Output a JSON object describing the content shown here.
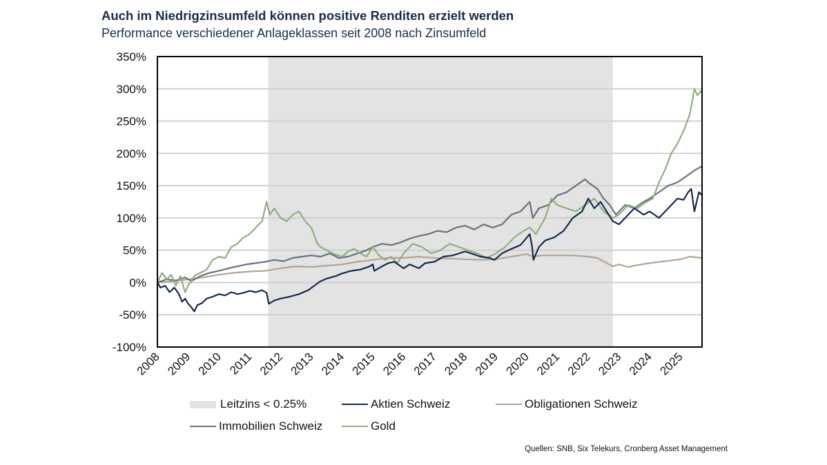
{
  "header": {
    "title": "Auch im Niedrigzinsumfeld können positive Renditen erzielt werden",
    "subtitle": "Performance verschiedener Anlageklassen seit 2008 nach Zinsumfeld"
  },
  "source": "Quellen: SNB, Six Telekurs, Cronberg Asset Management",
  "chart_data": {
    "type": "line",
    "title": "Auch im Niedrigzinsumfeld können positive Renditen erzielt werden",
    "subtitle": "Performance verschiedener Anlageklassen seit 2008 nach Zinsumfeld",
    "xlabel": "",
    "ylabel": "",
    "xlim": [
      2008.0,
      2025.7
    ],
    "ylim": [
      -100,
      350
    ],
    "x_ticks": [
      "2008",
      "2009",
      "2010",
      "2011",
      "2012",
      "2013",
      "2014",
      "2015",
      "2016",
      "2017",
      "2018",
      "2019",
      "2020",
      "2021",
      "2022",
      "2023",
      "2024",
      "2025"
    ],
    "y_ticks": [
      "-100%",
      "-50%",
      "0%",
      "50%",
      "100%",
      "150%",
      "200%",
      "250%",
      "300%",
      "350%"
    ],
    "y_tick_values": [
      -100,
      -50,
      0,
      50,
      100,
      150,
      200,
      250,
      300,
      350
    ],
    "grid": "horizontal",
    "legend_position": "bottom",
    "shaded_region": {
      "label": "Leitzins < 0.25%",
      "start": 2011.6,
      "end": 2022.8,
      "color": "#e3e3e3"
    },
    "series": [
      {
        "name": "Aktien Schweiz",
        "color": "#13294b",
        "x": [
          2008.0,
          2008.1,
          2008.25,
          2008.4,
          2008.55,
          2008.7,
          2008.8,
          2008.9,
          2009.0,
          2009.1,
          2009.2,
          2009.3,
          2009.45,
          2009.6,
          2009.8,
          2010.0,
          2010.2,
          2010.4,
          2010.6,
          2010.8,
          2011.0,
          2011.2,
          2011.4,
          2011.55,
          2011.62,
          2011.8,
          2012.0,
          2012.3,
          2012.6,
          2012.9,
          2013.1,
          2013.3,
          2013.5,
          2013.8,
          2014.0,
          2014.3,
          2014.6,
          2014.9,
          2015.0,
          2015.05,
          2015.3,
          2015.5,
          2015.7,
          2016.0,
          2016.2,
          2016.5,
          2016.7,
          2017.0,
          2017.3,
          2017.6,
          2018.0,
          2018.2,
          2018.5,
          2018.8,
          2018.95,
          2019.2,
          2019.5,
          2019.8,
          2020.1,
          2020.18,
          2020.22,
          2020.4,
          2020.6,
          2020.9,
          2021.2,
          2021.5,
          2021.8,
          2022.0,
          2022.2,
          2022.4,
          2022.6,
          2022.8,
          2023.0,
          2023.2,
          2023.5,
          2023.8,
          2024.0,
          2024.3,
          2024.6,
          2024.9,
          2025.1,
          2025.25,
          2025.35,
          2025.45,
          2025.6,
          2025.7
        ],
        "values": [
          0,
          -8,
          -5,
          -15,
          -8,
          -18,
          -30,
          -25,
          -33,
          -38,
          -45,
          -35,
          -32,
          -25,
          -22,
          -18,
          -20,
          -15,
          -18,
          -16,
          -13,
          -15,
          -12,
          -16,
          -33,
          -28,
          -25,
          -22,
          -18,
          -12,
          -5,
          2,
          6,
          10,
          14,
          18,
          20,
          25,
          28,
          18,
          25,
          30,
          32,
          22,
          28,
          22,
          30,
          32,
          40,
          42,
          48,
          45,
          40,
          38,
          35,
          45,
          52,
          58,
          75,
          55,
          35,
          55,
          65,
          70,
          80,
          100,
          110,
          130,
          115,
          125,
          110,
          95,
          90,
          100,
          115,
          105,
          110,
          100,
          115,
          130,
          128,
          140,
          145,
          110,
          140,
          135
        ]
      },
      {
        "name": "Obligationen Schweiz",
        "color": "#b5a293",
        "x": [
          2008.0,
          2008.5,
          2009.0,
          2009.5,
          2010.0,
          2010.5,
          2011.0,
          2011.5,
          2012.0,
          2012.5,
          2013.0,
          2013.5,
          2014.0,
          2014.5,
          2015.0,
          2015.5,
          2016.0,
          2016.5,
          2017.0,
          2017.5,
          2018.0,
          2018.5,
          2019.0,
          2019.5,
          2020.0,
          2020.2,
          2020.5,
          2021.0,
          2021.5,
          2022.0,
          2022.3,
          2022.6,
          2022.8,
          2023.0,
          2023.3,
          2023.6,
          2024.0,
          2024.5,
          2025.0,
          2025.3,
          2025.7
        ],
        "values": [
          0,
          2,
          5,
          8,
          12,
          15,
          17,
          18,
          22,
          25,
          24,
          26,
          28,
          32,
          35,
          38,
          38,
          40,
          38,
          37,
          36,
          35,
          36,
          40,
          44,
          40,
          42,
          42,
          42,
          40,
          38,
          30,
          25,
          28,
          24,
          27,
          30,
          33,
          36,
          40,
          38
        ]
      },
      {
        "name": "Immobilien Schweiz",
        "color": "#6b6f7d",
        "x": [
          2008.0,
          2008.3,
          2008.6,
          2008.9,
          2009.1,
          2009.4,
          2009.7,
          2010.0,
          2010.3,
          2010.6,
          2010.9,
          2011.2,
          2011.5,
          2011.8,
          2012.1,
          2012.4,
          2012.7,
          2013.0,
          2013.3,
          2013.6,
          2013.9,
          2014.2,
          2014.5,
          2014.8,
          2015.0,
          2015.3,
          2015.6,
          2015.9,
          2016.2,
          2016.5,
          2016.8,
          2017.1,
          2017.4,
          2017.7,
          2018.0,
          2018.3,
          2018.6,
          2018.9,
          2019.2,
          2019.5,
          2019.8,
          2020.1,
          2020.2,
          2020.4,
          2020.7,
          2021.0,
          2021.3,
          2021.6,
          2021.9,
          2022.0,
          2022.3,
          2022.5,
          2022.7,
          2022.9,
          2023.2,
          2023.5,
          2023.8,
          2024.0,
          2024.3,
          2024.6,
          2024.9,
          2025.2,
          2025.5,
          2025.7
        ],
        "values": [
          0,
          5,
          3,
          8,
          2,
          10,
          15,
          18,
          22,
          25,
          28,
          30,
          32,
          35,
          33,
          38,
          40,
          42,
          40,
          45,
          38,
          40,
          45,
          50,
          55,
          60,
          58,
          62,
          68,
          72,
          75,
          80,
          78,
          85,
          88,
          82,
          90,
          85,
          90,
          105,
          110,
          125,
          100,
          115,
          120,
          135,
          140,
          150,
          160,
          155,
          145,
          130,
          120,
          105,
          120,
          115,
          125,
          130,
          140,
          150,
          155,
          165,
          175,
          180
        ]
      },
      {
        "name": "Gold",
        "color": "#8fae80",
        "x": [
          2008.0,
          2008.15,
          2008.3,
          2008.45,
          2008.6,
          2008.75,
          2008.9,
          2009.0,
          2009.2,
          2009.4,
          2009.6,
          2009.8,
          2010.0,
          2010.2,
          2010.4,
          2010.6,
          2010.8,
          2011.0,
          2011.2,
          2011.4,
          2011.55,
          2011.65,
          2011.8,
          2012.0,
          2012.2,
          2012.4,
          2012.6,
          2012.8,
          2013.0,
          2013.2,
          2013.3,
          2013.5,
          2013.7,
          2014.0,
          2014.2,
          2014.4,
          2014.6,
          2014.8,
          2015.0,
          2015.2,
          2015.4,
          2015.6,
          2015.8,
          2016.0,
          2016.3,
          2016.6,
          2016.9,
          2017.2,
          2017.5,
          2017.8,
          2018.1,
          2018.4,
          2018.7,
          2019.0,
          2019.3,
          2019.6,
          2019.9,
          2020.1,
          2020.3,
          2020.6,
          2020.8,
          2021.0,
          2021.3,
          2021.6,
          2021.9,
          2022.2,
          2022.5,
          2022.8,
          2023.0,
          2023.3,
          2023.6,
          2023.9,
          2024.1,
          2024.3,
          2024.5,
          2024.7,
          2024.9,
          2025.1,
          2025.3,
          2025.45,
          2025.55,
          2025.7
        ],
        "values": [
          0,
          15,
          5,
          12,
          -5,
          10,
          -15,
          -5,
          10,
          15,
          20,
          35,
          40,
          38,
          55,
          60,
          70,
          75,
          85,
          95,
          125,
          105,
          115,
          100,
          95,
          105,
          110,
          95,
          85,
          60,
          55,
          50,
          45,
          40,
          48,
          52,
          45,
          40,
          55,
          42,
          35,
          40,
          30,
          45,
          60,
          55,
          45,
          50,
          60,
          55,
          50,
          45,
          38,
          45,
          55,
          70,
          80,
          85,
          75,
          100,
          130,
          120,
          115,
          110,
          120,
          130,
          110,
          100,
          105,
          120,
          115,
          125,
          130,
          155,
          175,
          200,
          215,
          235,
          260,
          300,
          290,
          298
        ]
      }
    ]
  },
  "legend": [
    {
      "label": "Leitzins < 0.25%",
      "kind": "box",
      "color": "#e3e3e3"
    },
    {
      "label": "Aktien Schweiz",
      "kind": "line",
      "color": "#13294b"
    },
    {
      "label": "Obligationen Schweiz",
      "kind": "line",
      "color": "#b5a293"
    },
    {
      "label": "Immobilien Schweiz",
      "kind": "line",
      "color": "#6b6f7d"
    },
    {
      "label": "Gold",
      "kind": "line",
      "color": "#8fae80"
    }
  ]
}
